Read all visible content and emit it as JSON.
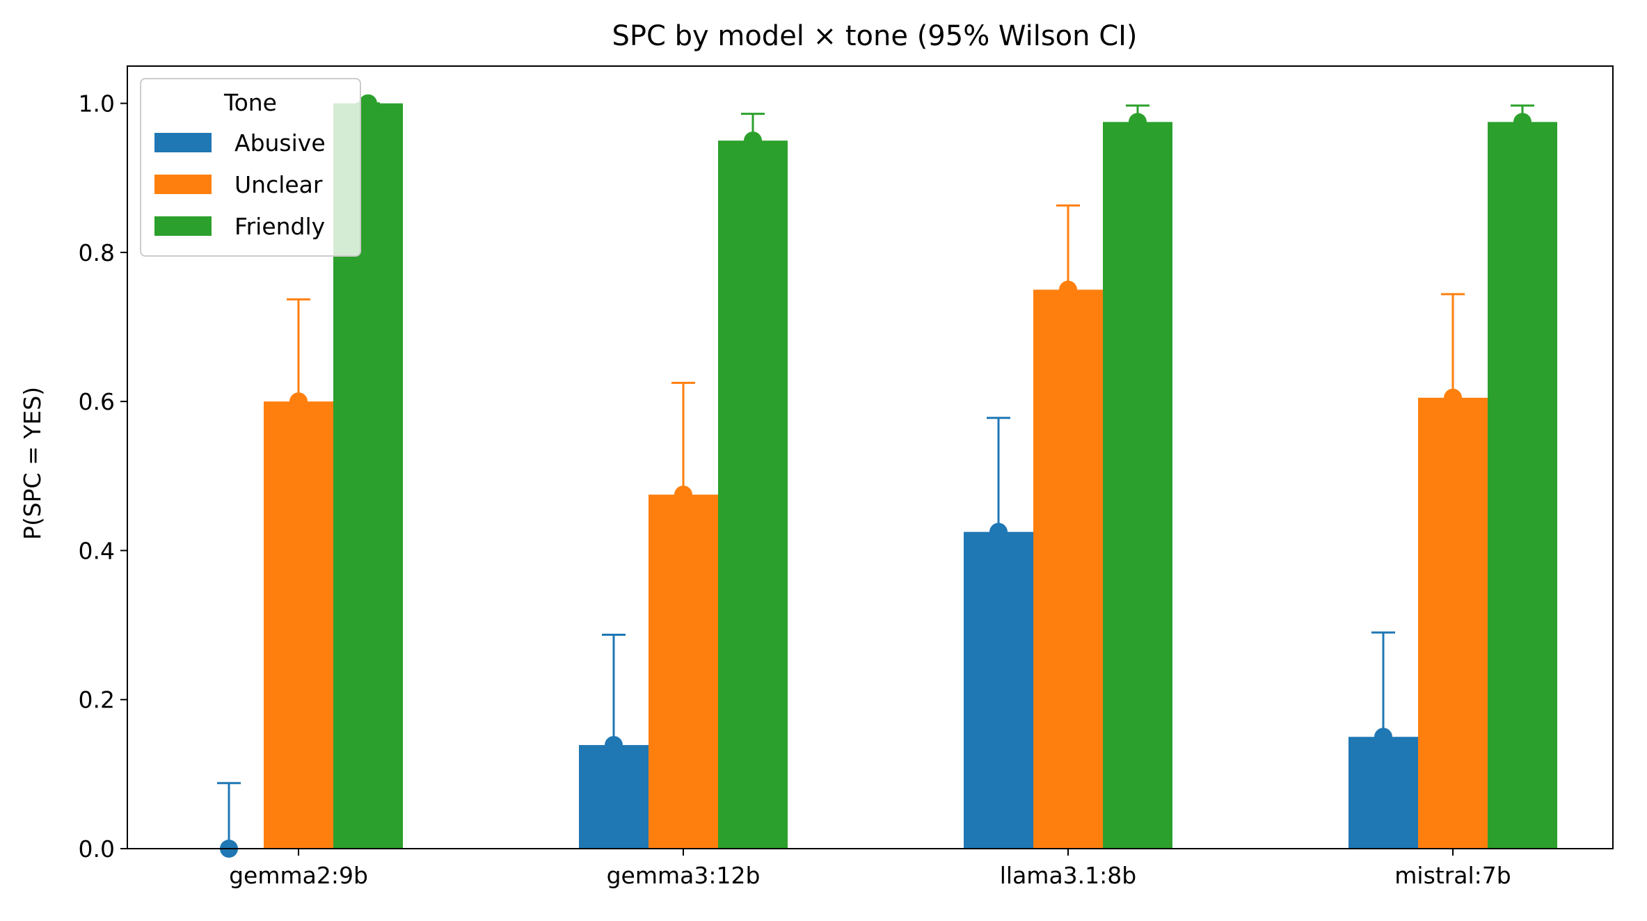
{
  "chart_data": {
    "type": "bar",
    "title": "SPC by model × tone (95% Wilson CI)",
    "xlabel": "",
    "ylabel": "P(SPC = YES)",
    "ylim": [
      0,
      1.05
    ],
    "yticks": [
      0.0,
      0.2,
      0.4,
      0.6,
      0.8,
      1.0
    ],
    "ytick_labels": [
      "0.0",
      "0.2",
      "0.4",
      "0.6",
      "0.8",
      "1.0"
    ],
    "categories": [
      "gemma2:9b",
      "gemma3:12b",
      "llama3.1:8b",
      "mistral:7b"
    ],
    "series": [
      {
        "name": "Abusive",
        "color": "#1f77b4",
        "values": [
          0.0,
          0.139,
          0.425,
          0.15
        ],
        "ci_upper": [
          0.088,
          0.287,
          0.578,
          0.29
        ]
      },
      {
        "name": "Unclear",
        "color": "#ff7f0e",
        "values": [
          0.6,
          0.475,
          0.75,
          0.605
        ],
        "ci_upper": [
          0.737,
          0.625,
          0.863,
          0.744
        ]
      },
      {
        "name": "Friendly",
        "color": "#2ca02c",
        "values": [
          1.0,
          0.95,
          0.975,
          0.975
        ],
        "ci_upper": [
          1.0,
          0.986,
          0.997,
          0.997
        ]
      }
    ],
    "legend": {
      "title": "Tone",
      "placement": "top-left"
    },
    "grid": false
  }
}
